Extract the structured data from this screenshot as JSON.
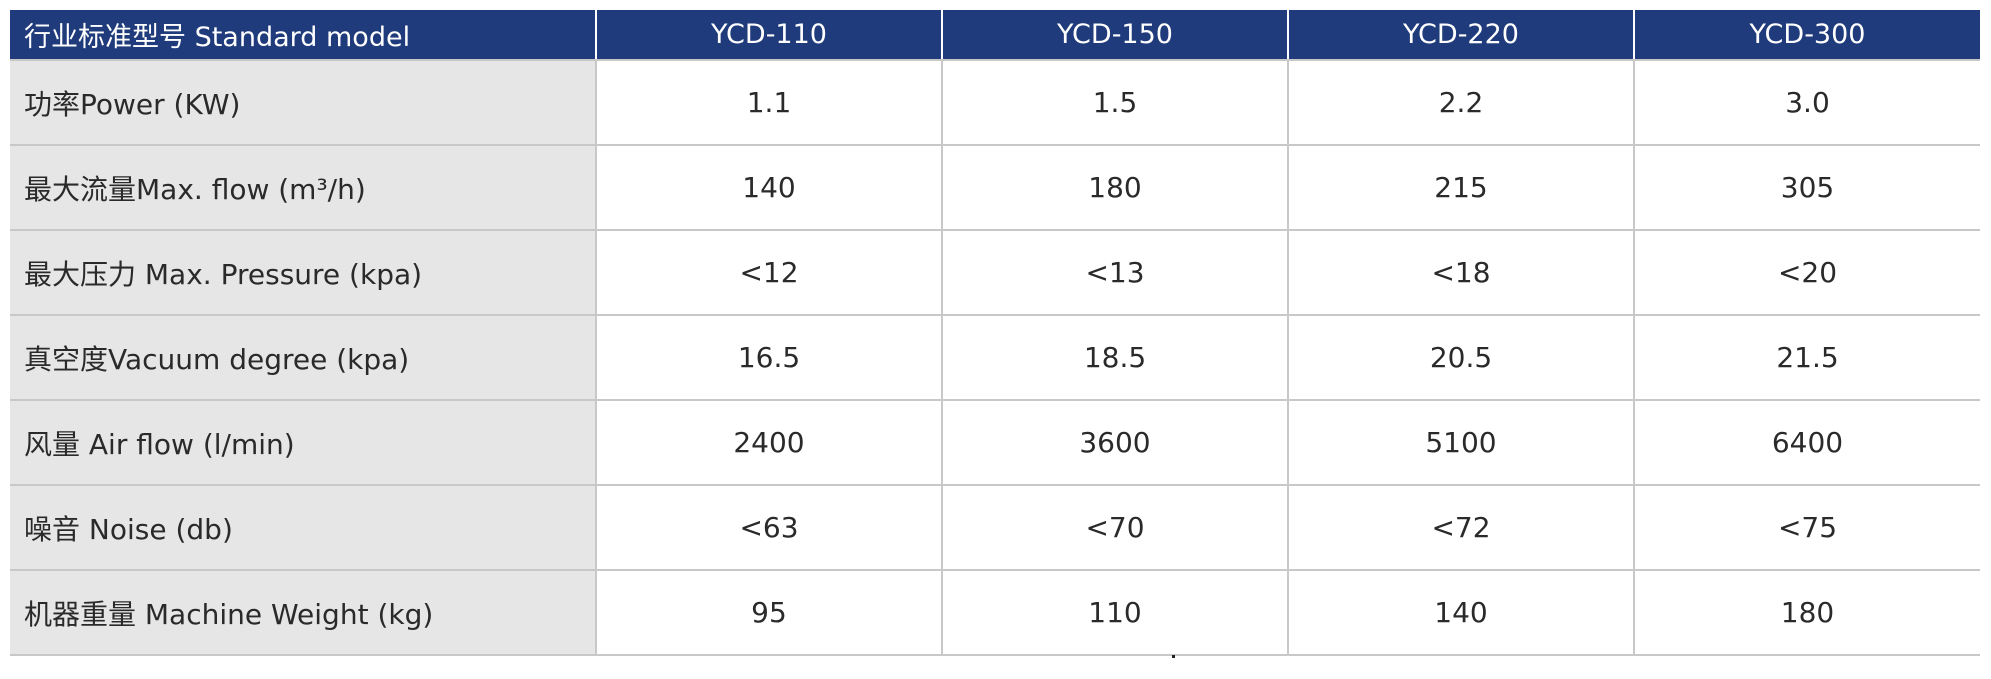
{
  "table": {
    "header_label": "行业标准型号 Standard model",
    "models": [
      "YCD-110",
      "YCD-150",
      "YCD-220",
      "YCD-300"
    ],
    "rows": [
      {
        "label": "功率Power (KW)",
        "values": [
          "1.1",
          "1.5",
          "2.2",
          "3.0"
        ]
      },
      {
        "label": "最大流量Max. flow (m³/h)",
        "values": [
          "140",
          "180",
          "215",
          "305"
        ]
      },
      {
        "label": "最大压力 Max. Pressure (kpa)",
        "values": [
          "<12",
          "<13",
          "<18",
          "<20"
        ]
      },
      {
        "label": "真空度Vacuum degree (kpa)",
        "values": [
          "16.5",
          "18.5",
          "20.5",
          "21.5"
        ]
      },
      {
        "label": "风量 Air flow (l/min)",
        "values": [
          "2400",
          "3600",
          "5100",
          "6400"
        ]
      },
      {
        "label": "噪音 Noise (db)",
        "values": [
          "<63",
          "<70",
          "<72",
          "<75"
        ]
      },
      {
        "label": "机器重量 Machine Weight (kg)",
        "values": [
          "95",
          "110",
          "140",
          "180"
        ]
      }
    ]
  },
  "colors": {
    "header_bg": "#1f3b7b",
    "label_bg": "#e6e6e6",
    "grid_line": "#c8c8c8"
  }
}
